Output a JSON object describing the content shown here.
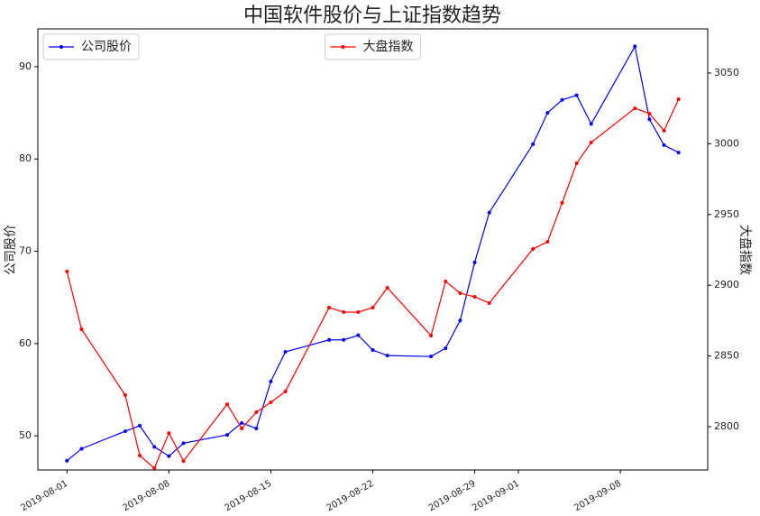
{
  "chart_data": {
    "type": "line",
    "title": "中国软件股价与上证指数趋势",
    "ylabel": "公司股价",
    "y2label": "大盘指数",
    "x": [
      "2019-08-01",
      "2019-08-02",
      "2019-08-05",
      "2019-08-06",
      "2019-08-07",
      "2019-08-08",
      "2019-08-09",
      "2019-08-12",
      "2019-08-13",
      "2019-08-14",
      "2019-08-15",
      "2019-08-16",
      "2019-08-19",
      "2019-08-20",
      "2019-08-21",
      "2019-08-22",
      "2019-08-23",
      "2019-08-26",
      "2019-08-27",
      "2019-08-28",
      "2019-08-29",
      "2019-08-30",
      "2019-09-02",
      "2019-09-03",
      "2019-09-04",
      "2019-09-05",
      "2019-09-06",
      "2019-09-09",
      "2019-09-10",
      "2019-09-11",
      "2019-09-12"
    ],
    "xlim": [
      "2019-07-30",
      "2019-09-14"
    ],
    "xticks": [
      "2019-08-01",
      "2019-08-08",
      "2019-08-15",
      "2019-08-22",
      "2019-08-29",
      "2019-09-01",
      "2019-09-08"
    ],
    "ylim": [
      46.3,
      94.1
    ],
    "yticks": [
      50,
      60,
      70,
      80,
      90
    ],
    "y2lim": [
      2769.4,
      3081.2
    ],
    "y2ticks": [
      2800,
      2850,
      2900,
      2950,
      3000,
      3050
    ],
    "series": [
      {
        "name": "公司股价",
        "color": "#0000ff",
        "legend": "upper left",
        "values": [
          47.3,
          48.6,
          50.5,
          51.1,
          48.8,
          47.8,
          49.2,
          50.1,
          51.4,
          50.8,
          55.9,
          59.1,
          60.4,
          60.4,
          60.9,
          59.3,
          58.7,
          58.6,
          59.5,
          62.5,
          68.8,
          74.2,
          81.6,
          85.0,
          86.4,
          86.9,
          83.8,
          92.2,
          84.3,
          81.5,
          80.7
        ]
      },
      {
        "name": "大盘指数",
        "color": "#ff0000",
        "axis": "y2",
        "legend": "upper center",
        "values": [
          2909.7,
          2868.9,
          2822.3,
          2779.6,
          2770.7,
          2795.5,
          2775.8,
          2815.9,
          2798.7,
          2810.2,
          2817.2,
          2824.9,
          2884.2,
          2881.0,
          2881.0,
          2884.2,
          2898.2,
          2864.4,
          2902.7,
          2894.4,
          2891.8,
          2887.4,
          2925.6,
          2930.7,
          2958.2,
          2986.2,
          3000.9,
          3025.1,
          3021.3,
          3009.2,
          3031.5
        ]
      }
    ]
  }
}
